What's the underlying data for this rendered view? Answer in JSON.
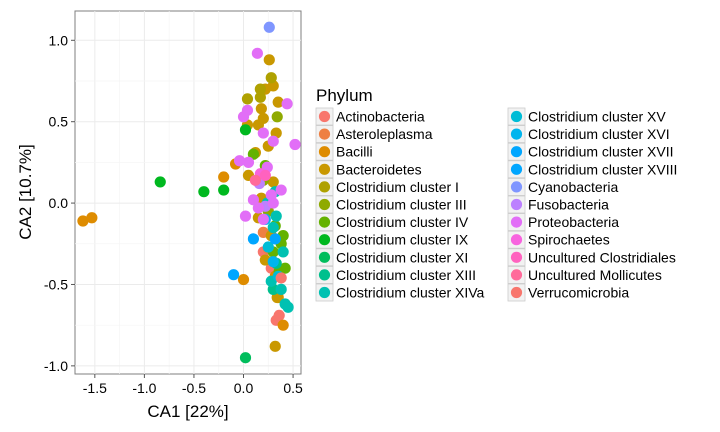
{
  "chart_data": {
    "type": "scatter",
    "xlabel": "CA1   [22%]",
    "ylabel": "CA2   [10.7%]",
    "xlim": [
      -1.7,
      0.58
    ],
    "ylim": [
      -1.05,
      1.18
    ],
    "xticks": [
      -1.5,
      -1.0,
      -0.5,
      0.0,
      0.5
    ],
    "xtick_labels": [
      "-1.5",
      "-1.0",
      "-0.5",
      "0.0",
      "0.5"
    ],
    "yticks": [
      -1.0,
      -0.5,
      0.0,
      0.5,
      1.0
    ],
    "ytick_labels": [
      "-1.0",
      "-0.5",
      "0.0",
      "0.5",
      "1.0"
    ],
    "grid": true,
    "legend": {
      "title": "Phylum",
      "placement": "right",
      "columns": 2
    },
    "series": [
      {
        "name": "Actinobacteria",
        "color": "#F8766D",
        "points": [
          [
            0.28,
            -0.4
          ],
          [
            0.33,
            -0.72
          ],
          [
            0.36,
            -0.69
          ],
          [
            0.2,
            -0.3
          ]
        ]
      },
      {
        "name": "Asteroleplasma",
        "color": "#EE8043",
        "points": [
          [
            0.2,
            -0.18
          ],
          [
            0.25,
            -0.28
          ]
        ]
      },
      {
        "name": "Bacilli",
        "color": "#DE8C00",
        "points": [
          [
            -1.62,
            -0.11
          ],
          [
            -1.53,
            -0.09
          ],
          [
            0.0,
            -0.47
          ],
          [
            0.35,
            -0.58
          ],
          [
            0.4,
            -0.75
          ],
          [
            -0.2,
            0.16
          ],
          [
            -0.08,
            0.24
          ],
          [
            0.32,
            -0.45
          ]
        ]
      },
      {
        "name": "Bacteroidetes",
        "color": "#C99800",
        "points": [
          [
            0.26,
            0.88
          ],
          [
            0.35,
            0.62
          ],
          [
            0.22,
            0.7
          ],
          [
            0.18,
            0.58
          ],
          [
            0.2,
            0.52
          ],
          [
            0.3,
            0.72
          ],
          [
            0.15,
            0.48
          ],
          [
            0.25,
            0.35
          ],
          [
            0.33,
            0.43
          ],
          [
            0.04,
            0.48
          ],
          [
            0.12,
            0.31
          ],
          [
            0.05,
            0.17
          ],
          [
            0.3,
            0.13
          ],
          [
            0.18,
            0.03
          ],
          [
            0.34,
            -0.58
          ],
          [
            0.32,
            -0.88
          ],
          [
            0.28,
            -0.2
          ],
          [
            0.22,
            -0.35
          ],
          [
            0.15,
            -0.09
          ]
        ]
      },
      {
        "name": "Clostridium cluster I",
        "color": "#AFA100",
        "points": [
          [
            0.28,
            0.77
          ],
          [
            0.04,
            0.64
          ],
          [
            0.17,
            0.65
          ],
          [
            0.17,
            0.7
          ]
        ]
      },
      {
        "name": "Clostridium cluster III",
        "color": "#8FAA00",
        "points": [
          [
            0.34,
            0.53
          ],
          [
            0.2,
            0.14
          ],
          [
            0.25,
            -0.05
          ]
        ]
      },
      {
        "name": "Clostridium cluster IV",
        "color": "#64B200",
        "points": [
          [
            0.38,
            -0.25
          ],
          [
            0.42,
            -0.4
          ],
          [
            0.1,
            0.3
          ],
          [
            0.22,
            0.23
          ],
          [
            0.32,
            -0.14
          ],
          [
            0.3,
            -0.3
          ],
          [
            0.36,
            -0.42
          ],
          [
            0.4,
            -0.2
          ]
        ]
      },
      {
        "name": "Clostridium cluster IX",
        "color": "#00B81F",
        "points": [
          [
            -0.84,
            0.13
          ],
          [
            -0.4,
            0.07
          ],
          [
            -0.2,
            0.08
          ],
          [
            0.02,
            0.45
          ]
        ]
      },
      {
        "name": "Clostridium cluster XI",
        "color": "#00BD5C",
        "points": [
          [
            0.02,
            -0.95
          ]
        ]
      },
      {
        "name": "Clostridium cluster XIII",
        "color": "#00C08D",
        "points": [
          [
            0.33,
            -0.37
          ],
          [
            0.3,
            -0.53
          ]
        ]
      },
      {
        "name": "Clostridium cluster XIVa",
        "color": "#00C1B2",
        "points": [
          [
            0.32,
            0.07
          ],
          [
            0.24,
            0.0
          ],
          [
            0.33,
            -0.08
          ],
          [
            0.4,
            -0.3
          ],
          [
            0.45,
            -0.64
          ],
          [
            0.28,
            -0.48
          ],
          [
            0.3,
            -0.15
          ],
          [
            0.42,
            -0.62
          ],
          [
            0.38,
            -0.53
          ]
        ]
      },
      {
        "name": "Clostridium cluster XV",
        "color": "#00BCD6",
        "points": [
          [
            0.25,
            -0.27
          ],
          [
            0.35,
            -0.45
          ]
        ]
      },
      {
        "name": "Clostridium cluster XVI",
        "color": "#00B5EE",
        "points": [
          [
            0.3,
            -0.36
          ],
          [
            0.22,
            -0.1
          ]
        ]
      },
      {
        "name": "Clostridium cluster XVII",
        "color": "#00A6FF",
        "points": [
          [
            -0.1,
            -0.44
          ],
          [
            0.1,
            -0.22
          ]
        ]
      },
      {
        "name": "Clostridium cluster XVIII",
        "color": "#00A6FF",
        "points": [
          [
            0.32,
            -0.22
          ]
        ]
      },
      {
        "name": "Cyanobacteria",
        "color": "#7F96FF",
        "points": [
          [
            0.26,
            1.08
          ]
        ]
      },
      {
        "name": "Fusobacteria",
        "color": "#BC81FF",
        "points": [
          [
            0.16,
            0.12
          ],
          [
            0.22,
            -0.02
          ]
        ]
      },
      {
        "name": "Proteobacteria",
        "color": "#E26EF7",
        "points": [
          [
            0.14,
            0.92
          ],
          [
            0.44,
            0.61
          ],
          [
            0.52,
            0.36
          ],
          [
            0.04,
            0.57
          ],
          [
            0.0,
            0.53
          ],
          [
            0.2,
            0.43
          ],
          [
            0.3,
            0.38
          ],
          [
            -0.04,
            0.26
          ],
          [
            0.05,
            0.25
          ],
          [
            0.24,
            0.22
          ],
          [
            0.1,
            0.02
          ],
          [
            0.15,
            -0.03
          ],
          [
            0.02,
            -0.08
          ],
          [
            0.3,
            0.0
          ],
          [
            0.38,
            0.08
          ],
          [
            0.2,
            -0.1
          ],
          [
            0.28,
            0.05
          ]
        ]
      },
      {
        "name": "Spirochaetes",
        "color": "#F863DF",
        "points": [
          [
            0.17,
            0.18
          ]
        ]
      },
      {
        "name": "Uncultured Clostridiales",
        "color": "#FF62BF",
        "points": [
          [
            0.22,
            0.17
          ]
        ]
      },
      {
        "name": "Uncultured Mollicutes",
        "color": "#FF6A9A",
        "points": [
          [
            0.12,
            0.14
          ]
        ]
      },
      {
        "name": "Verrucomicrobia",
        "color": "#F8766D",
        "points": [
          [
            0.38,
            -0.46
          ]
        ]
      }
    ]
  }
}
